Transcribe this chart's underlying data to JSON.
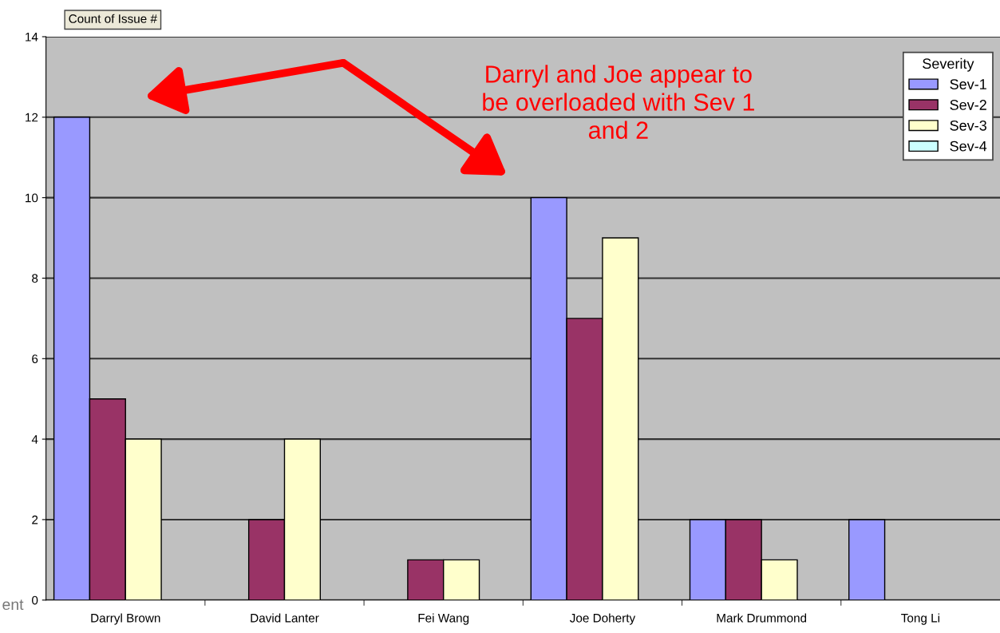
{
  "chart_data": {
    "type": "bar",
    "ylabel": "Count of Issue #",
    "legend_title": "Severity",
    "categories": [
      "Darryl Brown",
      "David Lanter",
      "Fei Wang",
      "Joe Doherty",
      "Mark Drummond",
      "Tong Li"
    ],
    "series": [
      {
        "name": "Sev-1",
        "color": "#9999ff",
        "values": [
          12,
          null,
          null,
          10,
          2,
          2
        ]
      },
      {
        "name": "Sev-2",
        "color": "#993366",
        "values": [
          5,
          2,
          1,
          7,
          2,
          null
        ]
      },
      {
        "name": "Sev-3",
        "color": "#ffffcc",
        "values": [
          4,
          4,
          1,
          9,
          1,
          null
        ]
      },
      {
        "name": "Sev-4",
        "color": "#ccffff",
        "values": [
          null,
          null,
          null,
          null,
          null,
          null
        ]
      }
    ],
    "ylim": [
      0,
      14
    ],
    "yticks": [
      0,
      2,
      4,
      6,
      8,
      10,
      12,
      14
    ],
    "grid": "y",
    "legend": "top right",
    "annotations": [
      "Darryl and Joe appear to be overloaded with Sev 1 and 2",
      "ent"
    ]
  }
}
